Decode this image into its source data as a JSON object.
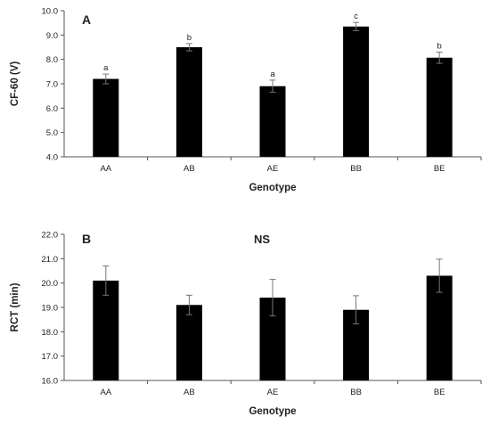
{
  "chart_data": [
    {
      "type": "bar",
      "panel_label": "A",
      "categories": [
        "AA",
        "AB",
        "AE",
        "BB",
        "BE"
      ],
      "values": [
        7.2,
        8.5,
        6.9,
        9.35,
        8.07
      ],
      "errors": [
        0.2,
        0.15,
        0.25,
        0.17,
        0.23
      ],
      "significance_letters": [
        "a",
        "b",
        "a",
        "c",
        "b"
      ],
      "xlabel": "Genotype",
      "ylabel": "CF-60 (V)",
      "ylim": [
        4.0,
        10.0
      ],
      "yticks": [
        "4.0",
        "5.0",
        "6.0",
        "7.0",
        "8.0",
        "9.0",
        "10.0"
      ],
      "grid": false,
      "bar_color": "#000000"
    },
    {
      "type": "bar",
      "panel_label": "B",
      "annotation": "NS",
      "categories": [
        "AA",
        "AB",
        "AE",
        "BB",
        "BE"
      ],
      "values": [
        20.1,
        19.1,
        19.4,
        18.9,
        20.3
      ],
      "errors": [
        0.6,
        0.4,
        0.75,
        0.58,
        0.68
      ],
      "xlabel": "Genotype",
      "ylabel": "RCT (min)",
      "ylim": [
        16.0,
        22.0
      ],
      "yticks": [
        "16.0",
        "17.0",
        "18.0",
        "19.0",
        "20.0",
        "21.0",
        "22.0"
      ],
      "grid": false,
      "bar_color": "#000000"
    }
  ]
}
